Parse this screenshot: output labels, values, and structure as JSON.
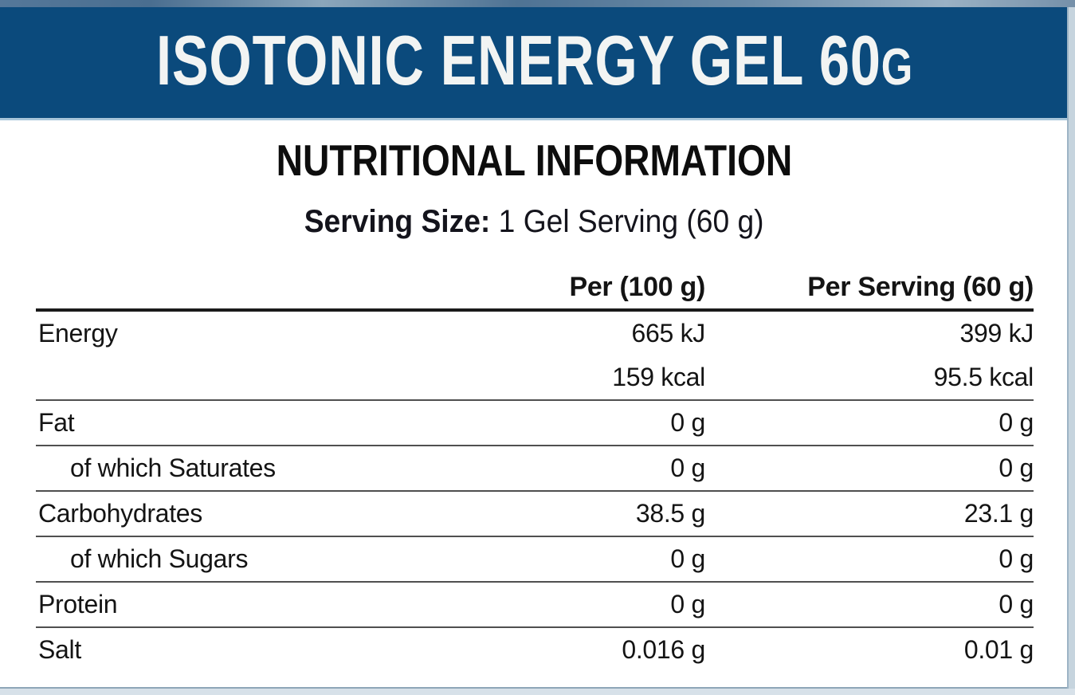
{
  "banner": {
    "title": "ISOTONIC ENERGY GEL 60",
    "title_unit": "G",
    "bg_color": "#0b4a7c",
    "text_color": "#f2f4f3"
  },
  "section": {
    "heading": "NUTRITIONAL INFORMATION",
    "serving_label": "Serving Size:",
    "serving_value": "1 Gel Serving (60 g)"
  },
  "table": {
    "columns": {
      "per_100g": "Per (100 g)",
      "per_serving": "Per Serving (60 g)"
    },
    "rows": [
      {
        "label": "Energy",
        "per_100g": "665 kJ",
        "per_serving": "399 kJ",
        "indent": false,
        "divider_above": false
      },
      {
        "label": "",
        "per_100g": "159 kcal",
        "per_serving": "95.5 kcal",
        "indent": false,
        "divider_above": false
      },
      {
        "label": "Fat",
        "per_100g": "0 g",
        "per_serving": "0 g",
        "indent": false,
        "divider_above": true
      },
      {
        "label": "of which Saturates",
        "per_100g": "0 g",
        "per_serving": "0 g",
        "indent": true,
        "divider_above": true
      },
      {
        "label": "Carbohydrates",
        "per_100g": "38.5 g",
        "per_serving": "23.1 g",
        "indent": false,
        "divider_above": true
      },
      {
        "label": "of which Sugars",
        "per_100g": "0 g",
        "per_serving": "0 g",
        "indent": true,
        "divider_above": true
      },
      {
        "label": "Protein",
        "per_100g": "0 g",
        "per_serving": "0 g",
        "indent": false,
        "divider_above": true
      },
      {
        "label": "Salt",
        "per_100g": "0.016 g",
        "per_serving": "0.01 g",
        "indent": false,
        "divider_above": true
      }
    ]
  }
}
